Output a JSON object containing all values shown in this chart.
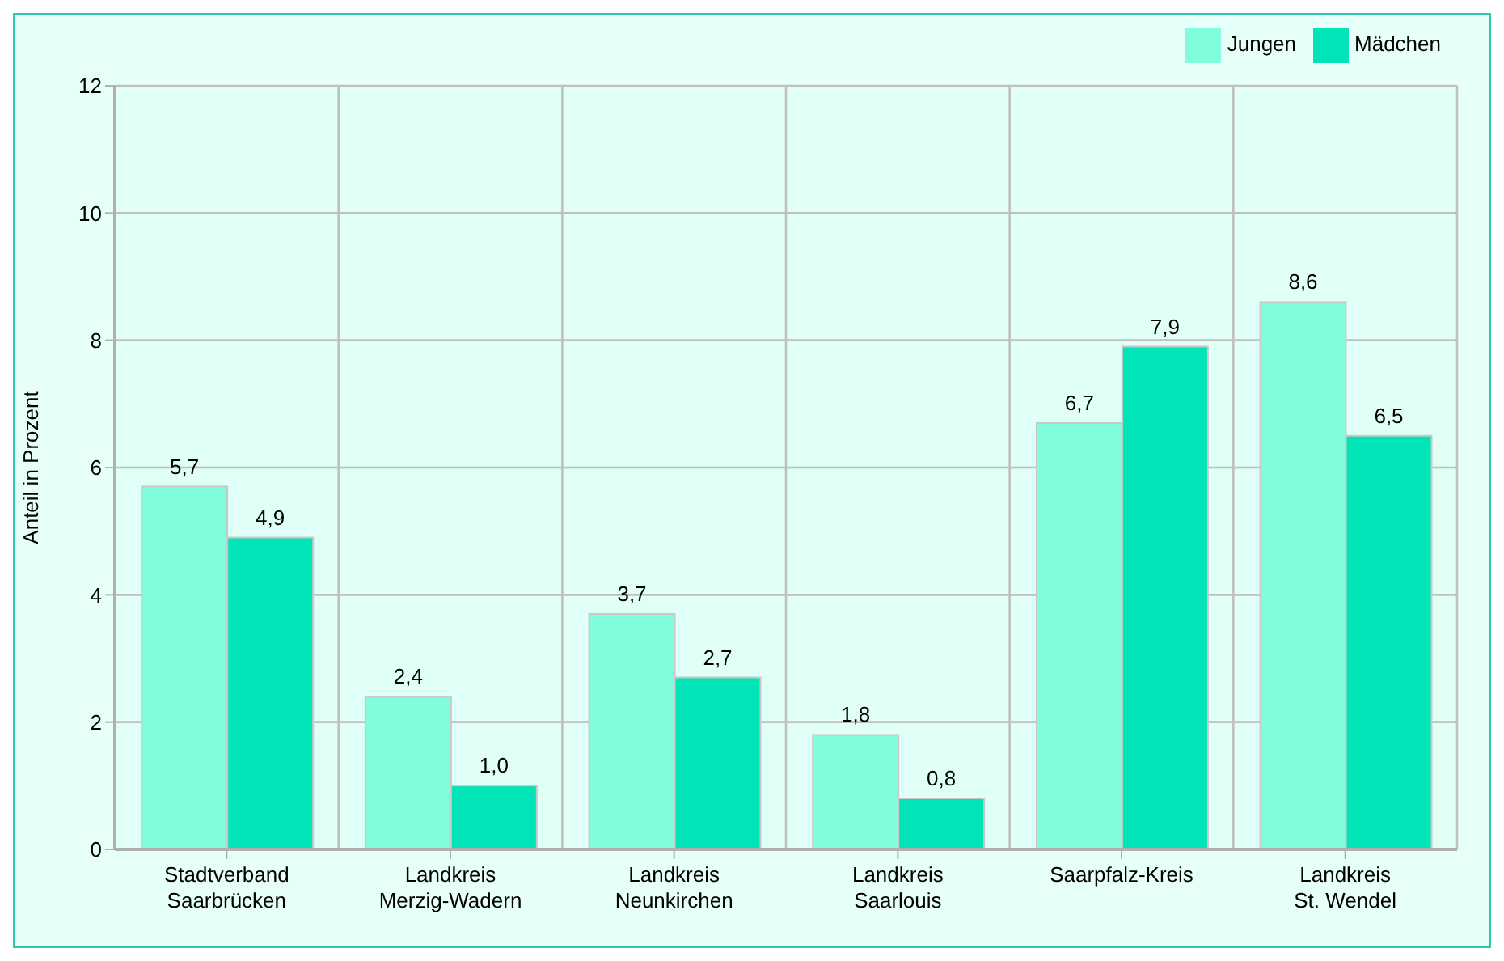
{
  "chart_data": {
    "type": "bar",
    "ylabel": "Anteil in Prozent",
    "categories": [
      "Stadtverband\nSaarbrücken",
      "Landkreis\nMerzig-Wadern",
      "Landkreis\nNeunkirchen",
      "Landkreis\nSaarlouis",
      "Saarpfalz-Kreis",
      "Landkreis\nSt. Wendel"
    ],
    "series": [
      {
        "name": "Jungen",
        "color": "#80fddc",
        "values": [
          5.7,
          2.4,
          3.7,
          1.8,
          6.7,
          8.6
        ],
        "value_labels": [
          "5,7",
          "2,4",
          "3,7",
          "1,8",
          "6,7",
          "8,6"
        ]
      },
      {
        "name": "Mädchen",
        "color": "#00e4b8",
        "values": [
          4.9,
          1.0,
          2.7,
          0.8,
          7.9,
          6.5
        ],
        "value_labels": [
          "4,9",
          "1,0",
          "2,7",
          "0,8",
          "7,9",
          "6,5"
        ]
      }
    ],
    "ylim": [
      0,
      12
    ],
    "yticks": [
      0,
      2,
      4,
      6,
      8,
      10,
      12
    ],
    "grid": true,
    "legend": "top right"
  }
}
